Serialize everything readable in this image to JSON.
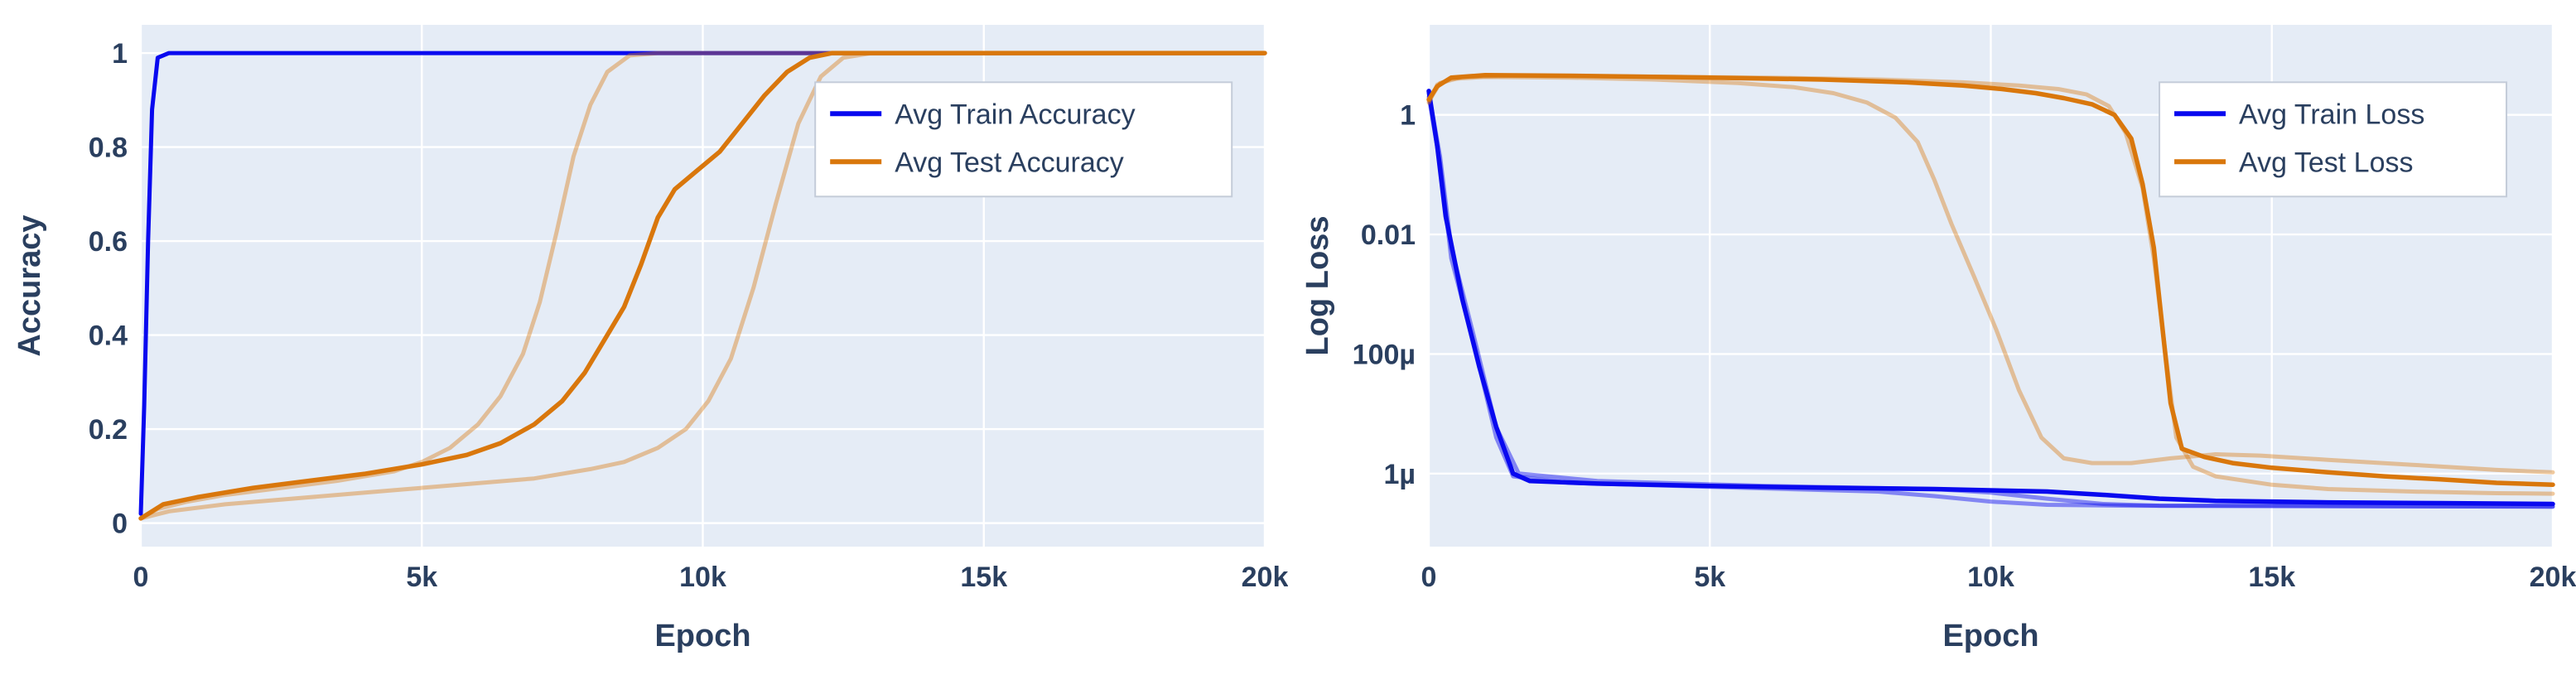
{
  "figure": {
    "background": "#ffffff",
    "plot_background": "#e5ecf6",
    "grid_color": "#ffffff",
    "text_color": "#2a3f5f",
    "legend_border_color": "#c4ccd9",
    "train_color": "#0909ef",
    "test_color": "#d9770c"
  },
  "chart_data": [
    {
      "type": "line",
      "title": "",
      "xlabel": "Epoch",
      "ylabel": "Accuracy",
      "yscale": "linear",
      "grid": true,
      "bg": "#e5ecf6",
      "grid_color": "#ffffff",
      "text_color": "#2a3f5f",
      "xlim": [
        0,
        20000
      ],
      "ylim": [
        -0.05,
        1.06
      ],
      "x_ticks": [
        {
          "v": 0,
          "label": "0"
        },
        {
          "v": 5000,
          "label": "5k"
        },
        {
          "v": 10000,
          "label": "10k"
        },
        {
          "v": 15000,
          "label": "15k"
        },
        {
          "v": 20000,
          "label": "20k"
        }
      ],
      "y_ticks": [
        {
          "v": 0,
          "label": "0"
        },
        {
          "v": 0.2,
          "label": "0.2"
        },
        {
          "v": 0.4,
          "label": "0.4"
        },
        {
          "v": 0.6,
          "label": "0.6"
        },
        {
          "v": 0.8,
          "label": "0.8"
        },
        {
          "v": 1,
          "label": "1"
        }
      ],
      "legend": {
        "position": "inside-top-right",
        "x": 0.6,
        "y": 0.11,
        "entries": [
          {
            "label": "Avg Train Accuracy",
            "color": "#0909ef"
          },
          {
            "label": "Avg Test Accuracy",
            "color": "#d9770c"
          }
        ]
      },
      "series": [
        {
          "name": "avg-train-accuracy",
          "color": "#0909ef",
          "opacity": 1,
          "width": 5,
          "points": [
            [
              0,
              0.02
            ],
            [
              60,
              0.25
            ],
            [
              130,
              0.6
            ],
            [
              200,
              0.88
            ],
            [
              300,
              0.99
            ],
            [
              500,
              1.0
            ],
            [
              20000,
              1.0
            ]
          ]
        },
        {
          "name": "avg-test-accuracy-run-a",
          "color": "#d9770c",
          "opacity": 0.4,
          "width": 5,
          "points": [
            [
              0,
              0.01
            ],
            [
              300,
              0.03
            ],
            [
              800,
              0.045
            ],
            [
              1500,
              0.06
            ],
            [
              2500,
              0.075
            ],
            [
              3500,
              0.09
            ],
            [
              4500,
              0.11
            ],
            [
              5000,
              0.13
            ],
            [
              5500,
              0.16
            ],
            [
              6000,
              0.21
            ],
            [
              6400,
              0.27
            ],
            [
              6800,
              0.36
            ],
            [
              7100,
              0.47
            ],
            [
              7400,
              0.62
            ],
            [
              7700,
              0.78
            ],
            [
              8000,
              0.89
            ],
            [
              8300,
              0.96
            ],
            [
              8700,
              0.995
            ],
            [
              9200,
              1.0
            ],
            [
              20000,
              1.0
            ]
          ]
        },
        {
          "name": "avg-test-accuracy-run-b",
          "color": "#d9770c",
          "opacity": 0.4,
          "width": 5,
          "points": [
            [
              0,
              0.01
            ],
            [
              500,
              0.025
            ],
            [
              1500,
              0.04
            ],
            [
              3000,
              0.055
            ],
            [
              4500,
              0.07
            ],
            [
              6000,
              0.085
            ],
            [
              7000,
              0.095
            ],
            [
              8000,
              0.115
            ],
            [
              8600,
              0.13
            ],
            [
              9200,
              0.16
            ],
            [
              9700,
              0.2
            ],
            [
              10100,
              0.26
            ],
            [
              10500,
              0.35
            ],
            [
              10900,
              0.5
            ],
            [
              11300,
              0.68
            ],
            [
              11700,
              0.85
            ],
            [
              12100,
              0.95
            ],
            [
              12500,
              0.99
            ],
            [
              13000,
              1.0
            ],
            [
              20000,
              1.0
            ]
          ]
        },
        {
          "name": "avg-test-accuracy",
          "color": "#d9770c",
          "opacity": 1,
          "width": 5.5,
          "points": [
            [
              0,
              0.01
            ],
            [
              400,
              0.04
            ],
            [
              1000,
              0.055
            ],
            [
              2000,
              0.075
            ],
            [
              3000,
              0.09
            ],
            [
              4000,
              0.105
            ],
            [
              5000,
              0.125
            ],
            [
              5800,
              0.145
            ],
            [
              6400,
              0.17
            ],
            [
              7000,
              0.21
            ],
            [
              7500,
              0.26
            ],
            [
              7900,
              0.32
            ],
            [
              8300,
              0.4
            ],
            [
              8600,
              0.46
            ],
            [
              8900,
              0.55
            ],
            [
              9200,
              0.65
            ],
            [
              9500,
              0.71
            ],
            [
              9900,
              0.75
            ],
            [
              10300,
              0.79
            ],
            [
              10700,
              0.85
            ],
            [
              11100,
              0.91
            ],
            [
              11500,
              0.96
            ],
            [
              11900,
              0.99
            ],
            [
              12300,
              1.0
            ],
            [
              20000,
              1.0
            ]
          ]
        }
      ]
    },
    {
      "type": "line",
      "title": "",
      "xlabel": "Epoch",
      "ylabel": "Log Loss",
      "yscale": "log",
      "grid": true,
      "bg": "#e5ecf6",
      "grid_color": "#ffffff",
      "text_color": "#2a3f5f",
      "xlim": [
        0,
        20000
      ],
      "ylim": [
        6e-08,
        32
      ],
      "x_ticks": [
        {
          "v": 0,
          "label": "0"
        },
        {
          "v": 5000,
          "label": "5k"
        },
        {
          "v": 10000,
          "label": "10k"
        },
        {
          "v": 15000,
          "label": "15k"
        },
        {
          "v": 20000,
          "label": "20k"
        }
      ],
      "y_ticks": [
        {
          "v": 1,
          "label": "1"
        },
        {
          "v": 0.01,
          "label": "0.01"
        },
        {
          "v": 0.0001,
          "label": "100µ"
        },
        {
          "v": 1e-06,
          "label": "1µ"
        }
      ],
      "legend": {
        "position": "inside-top-right",
        "x": 0.65,
        "y": 0.11,
        "entries": [
          {
            "label": "Avg Train Loss",
            "color": "#0909ef"
          },
          {
            "label": "Avg Test Loss",
            "color": "#d9770c"
          }
        ]
      },
      "series": [
        {
          "name": "avg-train-loss-run-a",
          "color": "#0909ef",
          "opacity": 0.45,
          "width": 5,
          "points": [
            [
              0,
              2.0
            ],
            [
              200,
              0.15
            ],
            [
              400,
              0.004
            ],
            [
              800,
              0.00015
            ],
            [
              1200,
              4e-06
            ],
            [
              1500,
              9e-07
            ],
            [
              2500,
              7e-07
            ],
            [
              5000,
              6e-07
            ],
            [
              8000,
              5e-07
            ],
            [
              9000,
              4.2e-07
            ],
            [
              10000,
              3.4e-07
            ],
            [
              11000,
              3e-07
            ],
            [
              12500,
              2.9e-07
            ],
            [
              20000,
              2.8e-07
            ]
          ]
        },
        {
          "name": "avg-train-loss-run-b",
          "color": "#0909ef",
          "opacity": 0.45,
          "width": 5,
          "points": [
            [
              0,
              2.3
            ],
            [
              200,
              0.2
            ],
            [
              400,
              0.006
            ],
            [
              800,
              0.0002
            ],
            [
              1200,
              6e-06
            ],
            [
              1600,
              1e-06
            ],
            [
              3000,
              7.5e-07
            ],
            [
              6000,
              6.2e-07
            ],
            [
              9000,
              5.5e-07
            ],
            [
              10000,
              4.8e-07
            ],
            [
              11000,
              3.8e-07
            ],
            [
              12000,
              3.1e-07
            ],
            [
              13000,
              2.9e-07
            ],
            [
              20000,
              2.8e-07
            ]
          ]
        },
        {
          "name": "avg-train-loss",
          "color": "#0909ef",
          "opacity": 1,
          "width": 5.5,
          "points": [
            [
              0,
              2.5
            ],
            [
              150,
              0.3
            ],
            [
              300,
              0.02
            ],
            [
              600,
              0.0008
            ],
            [
              900,
              6e-05
            ],
            [
              1200,
              6e-06
            ],
            [
              1500,
              1e-06
            ],
            [
              1800,
              7.5e-07
            ],
            [
              3000,
              6.8e-07
            ],
            [
              5000,
              6.2e-07
            ],
            [
              7000,
              5.8e-07
            ],
            [
              9000,
              5.5e-07
            ],
            [
              11000,
              5e-07
            ],
            [
              12000,
              4.4e-07
            ],
            [
              13000,
              3.8e-07
            ],
            [
              14000,
              3.5e-07
            ],
            [
              16000,
              3.3e-07
            ],
            [
              18000,
              3.2e-07
            ],
            [
              20000,
              3.1e-07
            ]
          ]
        },
        {
          "name": "avg-test-loss-run-a",
          "color": "#d9770c",
          "opacity": 0.4,
          "width": 5,
          "points": [
            [
              0,
              1.6
            ],
            [
              150,
              3.2
            ],
            [
              400,
              4.0
            ],
            [
              1000,
              4.3
            ],
            [
              2500,
              4.2
            ],
            [
              4000,
              3.9
            ],
            [
              5500,
              3.4
            ],
            [
              6500,
              2.9
            ],
            [
              7200,
              2.3
            ],
            [
              7800,
              1.6
            ],
            [
              8300,
              0.9
            ],
            [
              8700,
              0.35
            ],
            [
              9000,
              0.08
            ],
            [
              9300,
              0.015
            ],
            [
              9700,
              0.002
            ],
            [
              10100,
              0.00025
            ],
            [
              10500,
              2.5e-05
            ],
            [
              10900,
              4e-06
            ],
            [
              11300,
              1.8e-06
            ],
            [
              11800,
              1.5e-06
            ],
            [
              12500,
              1.5e-06
            ],
            [
              13200,
              1.8e-06
            ],
            [
              14000,
              2.1e-06
            ],
            [
              14800,
              2e-06
            ],
            [
              16000,
              1.7e-06
            ],
            [
              17500,
              1.4e-06
            ],
            [
              19000,
              1.15e-06
            ],
            [
              20000,
              1.05e-06
            ]
          ]
        },
        {
          "name": "avg-test-loss-run-b",
          "color": "#d9770c",
          "opacity": 0.4,
          "width": 5,
          "points": [
            [
              0,
              1.7
            ],
            [
              200,
              3.4
            ],
            [
              600,
              4.3
            ],
            [
              1500,
              4.5
            ],
            [
              3500,
              4.4
            ],
            [
              6000,
              4.2
            ],
            [
              8000,
              3.9
            ],
            [
              9500,
              3.5
            ],
            [
              10500,
              3.1
            ],
            [
              11200,
              2.7
            ],
            [
              11700,
              2.2
            ],
            [
              12100,
              1.4
            ],
            [
              12400,
              0.5
            ],
            [
              12700,
              0.06
            ],
            [
              12900,
              0.004
            ],
            [
              13100,
              0.00012
            ],
            [
              13300,
              4e-06
            ],
            [
              13600,
              1.3e-06
            ],
            [
              14000,
              9e-07
            ],
            [
              15000,
              6.5e-07
            ],
            [
              16000,
              5.5e-07
            ],
            [
              17500,
              5e-07
            ],
            [
              19000,
              4.7e-07
            ],
            [
              20000,
              4.6e-07
            ]
          ]
        },
        {
          "name": "avg-test-loss",
          "color": "#d9770c",
          "opacity": 1,
          "width": 5.5,
          "points": [
            [
              0,
              1.8
            ],
            [
              150,
              3.0
            ],
            [
              400,
              4.2
            ],
            [
              1000,
              4.6
            ],
            [
              2500,
              4.5
            ],
            [
              5000,
              4.2
            ],
            [
              7000,
              3.9
            ],
            [
              8500,
              3.5
            ],
            [
              9500,
              3.1
            ],
            [
              10200,
              2.7
            ],
            [
              10800,
              2.3
            ],
            [
              11300,
              1.9
            ],
            [
              11800,
              1.5
            ],
            [
              12200,
              1.0
            ],
            [
              12500,
              0.4
            ],
            [
              12700,
              0.07
            ],
            [
              12900,
              0.006
            ],
            [
              13050,
              0.0003
            ],
            [
              13200,
              1.5e-05
            ],
            [
              13400,
              2.6e-06
            ],
            [
              13800,
              1.9e-06
            ],
            [
              14300,
              1.5e-06
            ],
            [
              15000,
              1.25e-06
            ],
            [
              16000,
              1.05e-06
            ],
            [
              17000,
              9e-07
            ],
            [
              18000,
              8e-07
            ],
            [
              19000,
              7e-07
            ],
            [
              20000,
              6.5e-07
            ]
          ]
        }
      ]
    }
  ]
}
